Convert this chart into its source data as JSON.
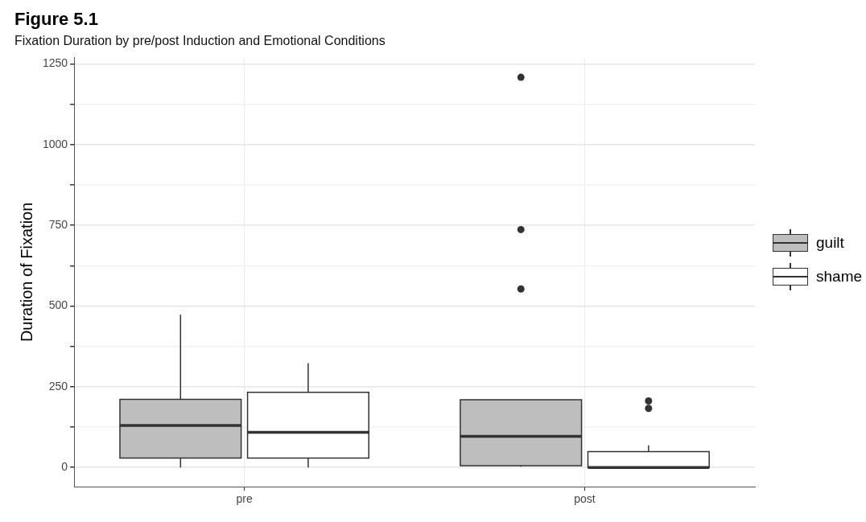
{
  "chart_data": {
    "type": "box",
    "title": "Figure 5.1",
    "subtitle": "Fixation Duration by pre/post Induction and Emotional Conditions",
    "ylabel": "Duration of Fixation",
    "categories": [
      "pre",
      "post"
    ],
    "series": [
      {
        "name": "guilt",
        "color": "#bebebe",
        "boxes": [
          {
            "low": 0,
            "q1": 29,
            "median": 130,
            "q3": 211,
            "high": 473
          },
          {
            "low": 2,
            "q1": 5,
            "median": 96,
            "q3": 210,
            "high": 210,
            "outliers": [
              553,
              737,
              1209
            ]
          }
        ]
      },
      {
        "name": "shame",
        "color": "#ffffff",
        "boxes": [
          {
            "low": 0,
            "q1": 29,
            "median": 109,
            "q3": 233,
            "high": 323
          },
          {
            "low": 0,
            "q1": 0,
            "median": 0,
            "q3": 49,
            "high": 68,
            "outliers": [
              183,
              206
            ]
          }
        ]
      }
    ],
    "ylim": [
      -60,
      1270
    ],
    "yticks": [
      0,
      {
        "value": 125,
        "label": null
      },
      250,
      {
        "value": 375,
        "label": null
      },
      500,
      {
        "value": 625,
        "label": null
      },
      750,
      {
        "value": 875,
        "label": null
      },
      1000,
      {
        "value": 1125,
        "label": null
      },
      1250
    ],
    "grid": true,
    "legend": "right"
  }
}
